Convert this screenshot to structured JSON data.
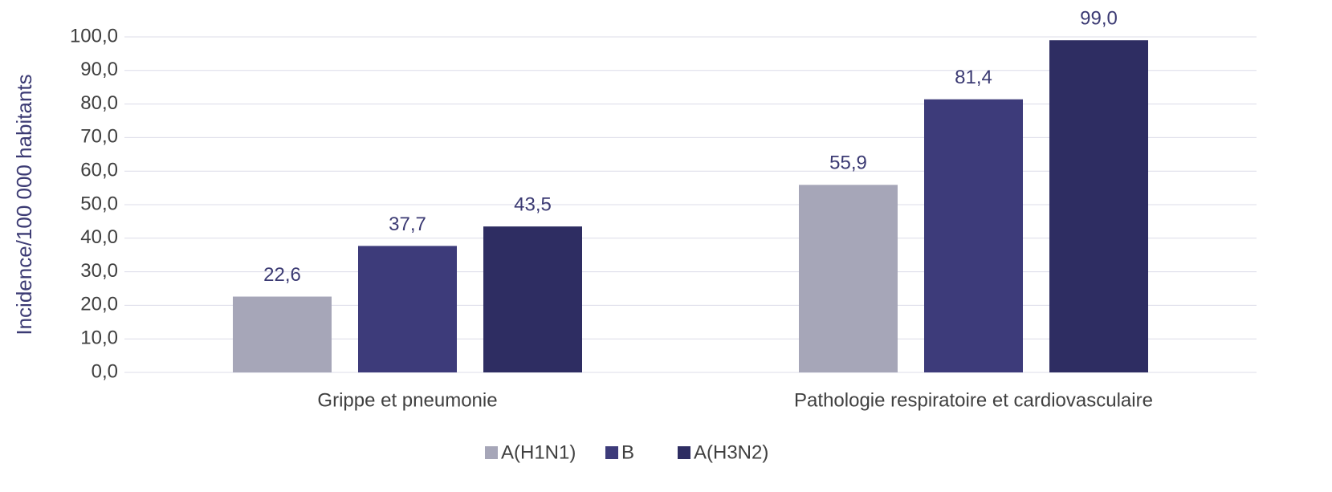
{
  "chart_data": {
    "type": "bar",
    "y_label": "Incidence/100 000 habitants",
    "categories": [
      "Grippe et pneumonie",
      "Pathologie respiratoire et cardiovasculaire"
    ],
    "series": [
      {
        "name": "A(H1N1)",
        "color": "#a6a6b8",
        "values": [
          22.6,
          55.9
        ],
        "value_labels": [
          "22,6",
          "55,9"
        ]
      },
      {
        "name": "B",
        "color": "#3d3b7a",
        "values": [
          37.7,
          81.4
        ],
        "value_labels": [
          "37,7",
          "81,4"
        ]
      },
      {
        "name": "A(H3N2)",
        "color": "#2e2d62",
        "values": [
          43.5,
          99.0
        ],
        "value_labels": [
          "43,5",
          "99,0"
        ]
      }
    ],
    "ylim": [
      0,
      100
    ],
    "yticks": [
      {
        "value": 0,
        "label": "0,0"
      },
      {
        "value": 10,
        "label": "10,0"
      },
      {
        "value": 20,
        "label": "20,0"
      },
      {
        "value": 30,
        "label": "30,0"
      },
      {
        "value": 40,
        "label": "40,0"
      },
      {
        "value": 50,
        "label": "50,0"
      },
      {
        "value": 60,
        "label": "60,0"
      },
      {
        "value": 70,
        "label": "70,0"
      },
      {
        "value": 80,
        "label": "80,0"
      },
      {
        "value": 90,
        "label": "90,0"
      },
      {
        "value": 100,
        "label": "100,0"
      }
    ],
    "grid": true,
    "legend": "bottom"
  }
}
